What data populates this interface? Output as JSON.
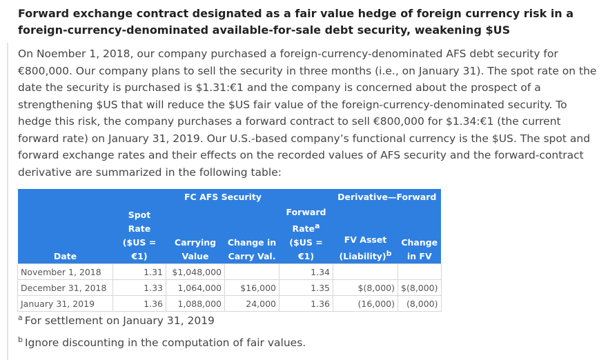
{
  "header": {
    "title": "Forward exchange contract designated as a fair value hedge of foreign currency risk in a foreign-currency-denominated available-for-sale debt security, weakening $US"
  },
  "paragraph": "On Noember 1, 2018, our company purchased a foreign-currency-denominated AFS debt security for €800,000. Our company plans to sell the security in three months (i.e., on January 31). The spot rate on the date the security is purchased is $1.31:€1 and the company is concerned about the prospect of a strengthening $US that will reduce the $US fair value of the foreign-currency-denominated security. To hedge this risk, the company purchases a forward contract to sell €800,000 for $1.34:€1 (the current forward rate) on January 31, 2019. Our U.S.-based company’s functional currency is the $US. The spot and forward exchange rates and their effects on the recorded values of AFS security and the forward-contract derivative are summarized in the following table:",
  "table": {
    "group_headers": [
      "FC AFS Security",
      "Derivative—Forward"
    ],
    "columns": [
      {
        "lines": [
          "Date"
        ]
      },
      {
        "lines": [
          "Spot Rate",
          "($US = €1)"
        ]
      },
      {
        "lines": [
          "Carrying",
          "Value"
        ]
      },
      {
        "lines": [
          "Change in",
          "Carry Val."
        ]
      },
      {
        "lines": [
          "Forward",
          {
            "text": "Rate",
            "sup": "a"
          },
          "($US = €1)"
        ]
      },
      {
        "lines": [
          "FV Asset",
          {
            "text": "(Liability)",
            "sup": "b"
          }
        ]
      },
      {
        "lines": [
          "Change",
          "in FV"
        ]
      }
    ],
    "rows": [
      [
        "November 1, 2018",
        "1.31",
        "$1,048,000",
        null,
        "1.34",
        null,
        null
      ],
      [
        "December 31, 2018",
        "1.33",
        "1,064,000",
        "$16,000",
        "1.35",
        "$(8,000)",
        "$(8,000)"
      ],
      [
        "January 31, 2019",
        "1.36",
        "1,088,000",
        "24,000",
        "1.36",
        "(16,000)",
        "(8,000)"
      ]
    ]
  },
  "footnotes": [
    {
      "mark": "a",
      "text": "For settlement on January 31, 2019"
    },
    {
      "mark": "b",
      "text": "Ignore discounting in the computation of fair values."
    }
  ]
}
